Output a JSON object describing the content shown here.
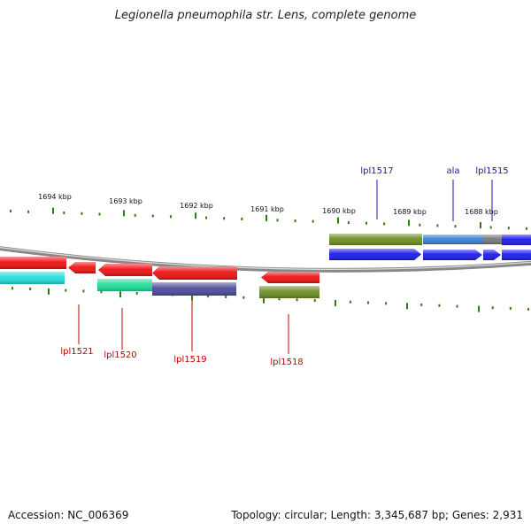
{
  "title": "Legionella pneumophila str. Lens, complete genome",
  "footer": {
    "accession": "Accession: NC_006369",
    "stats": "Topology: circular; Length: 3,345,687 bp; Genes: 2,931"
  },
  "colors": {
    "tick": "#2e7d12",
    "backbone": "#888888",
    "forward_label": "#1a1aa8",
    "reverse_label": "#c40000",
    "red": "#ee1111",
    "blue": "#1a1aee",
    "olive": "#6b8e23",
    "cyan": "#22dddd",
    "teal": "#22dd99",
    "slate": "#4b4b9a",
    "steel": "#3a7fd0",
    "gray": "#777777"
  },
  "scale": {
    "ticks": [
      {
        "label": "1694 kbp"
      },
      {
        "label": "1693 kbp"
      },
      {
        "label": "1692 kbp"
      },
      {
        "label": "1691 kbp"
      },
      {
        "label": "1690 kbp"
      },
      {
        "label": "1689 kbp"
      },
      {
        "label": "1688 kbp"
      }
    ]
  },
  "labels": {
    "forward": [
      {
        "text": "lpl1517"
      },
      {
        "text": "ala"
      },
      {
        "text": "lpl1515"
      }
    ],
    "reverse": [
      {
        "text": "lpl1521"
      },
      {
        "text": "lpl1520"
      },
      {
        "text": "lpl1519"
      },
      {
        "text": "lpl1518"
      }
    ]
  }
}
